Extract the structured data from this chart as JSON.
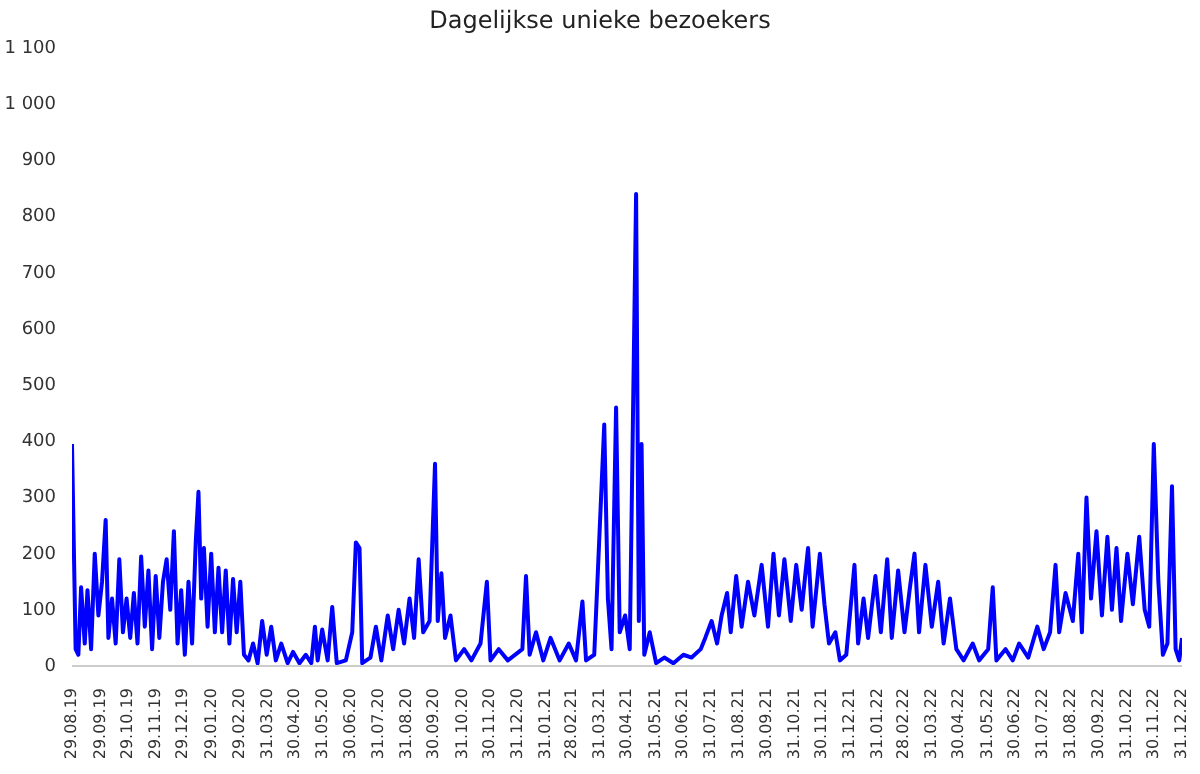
{
  "chart_data": {
    "type": "line",
    "title": "Dagelijkse unieke bezoekers",
    "x": [
      "2019-08-29",
      "2019-09-02",
      "2019-09-05",
      "2019-09-08",
      "2019-09-12",
      "2019-09-15",
      "2019-09-19",
      "2019-09-23",
      "2019-09-27",
      "2019-10-01",
      "2019-10-05",
      "2019-10-08",
      "2019-10-12",
      "2019-10-16",
      "2019-10-20",
      "2019-10-24",
      "2019-10-28",
      "2019-11-01",
      "2019-11-05",
      "2019-11-09",
      "2019-11-13",
      "2019-11-17",
      "2019-11-21",
      "2019-11-25",
      "2019-11-29",
      "2019-12-03",
      "2019-12-07",
      "2019-12-11",
      "2019-12-15",
      "2019-12-19",
      "2019-12-23",
      "2019-12-27",
      "2019-12-31",
      "2020-01-04",
      "2020-01-08",
      "2020-01-12",
      "2020-01-15",
      "2020-01-18",
      "2020-01-21",
      "2020-01-25",
      "2020-01-29",
      "2020-02-02",
      "2020-02-06",
      "2020-02-10",
      "2020-02-14",
      "2020-02-18",
      "2020-02-22",
      "2020-02-26",
      "2020-03-01",
      "2020-03-05",
      "2020-03-10",
      "2020-03-15",
      "2020-03-20",
      "2020-03-25",
      "2020-03-30",
      "2020-04-04",
      "2020-04-09",
      "2020-04-15",
      "2020-04-22",
      "2020-04-28",
      "2020-05-05",
      "2020-05-12",
      "2020-05-18",
      "2020-05-22",
      "2020-05-25",
      "2020-05-30",
      "2020-06-05",
      "2020-06-10",
      "2020-06-15",
      "2020-06-25",
      "2020-07-02",
      "2020-07-06",
      "2020-07-10",
      "2020-07-13",
      "2020-07-22",
      "2020-07-28",
      "2020-08-03",
      "2020-08-10",
      "2020-08-16",
      "2020-08-22",
      "2020-08-28",
      "2020-09-03",
      "2020-09-08",
      "2020-09-13",
      "2020-09-18",
      "2020-09-25",
      "2020-10-01",
      "2020-10-04",
      "2020-10-08",
      "2020-10-12",
      "2020-10-18",
      "2020-10-24",
      "2020-11-02",
      "2020-11-10",
      "2020-11-20",
      "2020-11-27",
      "2020-12-01",
      "2020-12-10",
      "2020-12-20",
      "2021-01-05",
      "2021-01-09",
      "2021-01-13",
      "2021-01-20",
      "2021-01-28",
      "2021-02-05",
      "2021-02-15",
      "2021-02-25",
      "2021-03-05",
      "2021-03-12",
      "2021-03-16",
      "2021-03-25",
      "2021-04-05",
      "2021-04-09",
      "2021-04-13",
      "2021-04-18",
      "2021-04-22",
      "2021-04-28",
      "2021-05-03",
      "2021-05-10",
      "2021-05-13",
      "2021-05-16",
      "2021-05-19",
      "2021-05-25",
      "2021-06-01",
      "2021-06-10",
      "2021-06-20",
      "2021-07-01",
      "2021-07-10",
      "2021-07-20",
      "2021-07-25",
      "2021-08-01",
      "2021-08-07",
      "2021-08-12",
      "2021-08-18",
      "2021-08-22",
      "2021-08-28",
      "2021-09-03",
      "2021-09-10",
      "2021-09-17",
      "2021-09-25",
      "2021-10-02",
      "2021-10-08",
      "2021-10-14",
      "2021-10-20",
      "2021-10-27",
      "2021-11-02",
      "2021-11-08",
      "2021-11-15",
      "2021-11-20",
      "2021-11-28",
      "2021-12-03",
      "2021-12-08",
      "2021-12-15",
      "2021-12-20",
      "2021-12-27",
      "2022-01-05",
      "2022-01-09",
      "2022-01-15",
      "2022-01-20",
      "2022-01-28",
      "2022-02-03",
      "2022-02-10",
      "2022-02-15",
      "2022-02-22",
      "2022-03-01",
      "2022-03-07",
      "2022-03-12",
      "2022-03-17",
      "2022-03-24",
      "2022-03-31",
      "2022-04-07",
      "2022-04-13",
      "2022-04-20",
      "2022-04-27",
      "2022-05-05",
      "2022-05-15",
      "2022-05-22",
      "2022-06-01",
      "2022-06-06",
      "2022-06-10",
      "2022-06-20",
      "2022-06-28",
      "2022-07-05",
      "2022-07-15",
      "2022-07-25",
      "2022-08-01",
      "2022-08-08",
      "2022-08-14",
      "2022-08-18",
      "2022-08-25",
      "2022-09-02",
      "2022-09-08",
      "2022-09-12",
      "2022-09-17",
      "2022-09-22",
      "2022-09-28",
      "2022-10-04",
      "2022-10-10",
      "2022-10-15",
      "2022-10-20",
      "2022-10-25",
      "2022-11-01",
      "2022-11-07",
      "2022-11-14",
      "2022-11-20",
      "2022-11-25",
      "2022-11-30",
      "2022-12-05",
      "2022-12-10",
      "2022-12-15",
      "2022-12-20",
      "2022-12-24",
      "2022-12-28",
      "2022-12-31"
    ],
    "series": [
      {
        "color": "#0000ff",
        "values": [
          395,
          30,
          20,
          140,
          40,
          135,
          30,
          200,
          90,
          150,
          260,
          50,
          120,
          40,
          190,
          60,
          120,
          50,
          130,
          40,
          195,
          70,
          170,
          30,
          160,
          50,
          150,
          190,
          100,
          240,
          40,
          135,
          20,
          150,
          40,
          220,
          310,
          120,
          210,
          70,
          200,
          60,
          175,
          60,
          170,
          40,
          155,
          60,
          150,
          20,
          10,
          40,
          5,
          80,
          20,
          70,
          10,
          40,
          5,
          25,
          5,
          20,
          5,
          70,
          10,
          65,
          10,
          105,
          5,
          10,
          60,
          220,
          210,
          5,
          15,
          70,
          10,
          90,
          30,
          100,
          40,
          120,
          50,
          190,
          60,
          80,
          360,
          80,
          165,
          50,
          90,
          10,
          30,
          10,
          40,
          150,
          10,
          30,
          10,
          30,
          160,
          20,
          60,
          10,
          50,
          10,
          40,
          10,
          115,
          10,
          20,
          430,
          120,
          30,
          460,
          60,
          90,
          30,
          840,
          80,
          395,
          20,
          60,
          5,
          15,
          5,
          20,
          15,
          30,
          50,
          80,
          40,
          90,
          130,
          60,
          160,
          70,
          150,
          90,
          180,
          70,
          200,
          90,
          190,
          80,
          180,
          100,
          210,
          70,
          200,
          110,
          40,
          60,
          10,
          20,
          180,
          40,
          120,
          50,
          160,
          60,
          190,
          50,
          170,
          60,
          140,
          200,
          60,
          180,
          70,
          150,
          40,
          120,
          30,
          10,
          40,
          10,
          30,
          140,
          10,
          30,
          10,
          40,
          15,
          70,
          30,
          60,
          180,
          60,
          130,
          80,
          200,
          60,
          300,
          120,
          240,
          90,
          230,
          100,
          210,
          80,
          200,
          110,
          230,
          100,
          70,
          395,
          150,
          20,
          40,
          320,
          30,
          10,
          50
        ]
      }
    ],
    "xlim": [
      "2019-08-29",
      "2022-12-31"
    ],
    "xticks": [
      {
        "value": "2019-08-29",
        "label": "29.08.19"
      },
      {
        "value": "2019-09-29",
        "label": "29.09.19"
      },
      {
        "value": "2019-10-29",
        "label": "29.10.19"
      },
      {
        "value": "2019-11-29",
        "label": "29.11.19"
      },
      {
        "value": "2019-12-29",
        "label": "29.12.19"
      },
      {
        "value": "2020-01-29",
        "label": "29.01.20"
      },
      {
        "value": "2020-02-29",
        "label": "29.02.20"
      },
      {
        "value": "2020-03-31",
        "label": "31.03.20"
      },
      {
        "value": "2020-04-30",
        "label": "30.04.20"
      },
      {
        "value": "2020-05-31",
        "label": "31.05.20"
      },
      {
        "value": "2020-06-30",
        "label": "30.06.20"
      },
      {
        "value": "2020-07-31",
        "label": "31.07.20"
      },
      {
        "value": "2020-08-31",
        "label": "31.08.20"
      },
      {
        "value": "2020-09-30",
        "label": "30.09.20"
      },
      {
        "value": "2020-10-31",
        "label": "31.10.20"
      },
      {
        "value": "2020-11-30",
        "label": "30.11.20"
      },
      {
        "value": "2020-12-31",
        "label": "31.12.20"
      },
      {
        "value": "2021-01-31",
        "label": "31.01.21"
      },
      {
        "value": "2021-02-28",
        "label": "28.02.21"
      },
      {
        "value": "2021-03-31",
        "label": "31.03.21"
      },
      {
        "value": "2021-04-30",
        "label": "30.04.21"
      },
      {
        "value": "2021-05-31",
        "label": "31.05.21"
      },
      {
        "value": "2021-06-30",
        "label": "30.06.21"
      },
      {
        "value": "2021-07-31",
        "label": "31.07.21"
      },
      {
        "value": "2021-08-31",
        "label": "31.08.21"
      },
      {
        "value": "2021-09-30",
        "label": "30.09.21"
      },
      {
        "value": "2021-10-31",
        "label": "31.10.21"
      },
      {
        "value": "2021-11-30",
        "label": "30.11.21"
      },
      {
        "value": "2021-12-31",
        "label": "31.12.21"
      },
      {
        "value": "2022-01-31",
        "label": "31.01.22"
      },
      {
        "value": "2022-02-28",
        "label": "28.02.22"
      },
      {
        "value": "2022-03-31",
        "label": "31.03.22"
      },
      {
        "value": "2022-04-30",
        "label": "30.04.22"
      },
      {
        "value": "2022-05-31",
        "label": "31.05.22"
      },
      {
        "value": "2022-06-30",
        "label": "30.06.22"
      },
      {
        "value": "2022-07-31",
        "label": "31.07.22"
      },
      {
        "value": "2022-08-31",
        "label": "31.08.22"
      },
      {
        "value": "2022-09-30",
        "label": "30.09.22"
      },
      {
        "value": "2022-10-31",
        "label": "31.10.22"
      },
      {
        "value": "2022-11-30",
        "label": "30.11.22"
      },
      {
        "value": "2022-12-31",
        "label": "31.12.22"
      }
    ],
    "ylim": [
      0,
      1100
    ],
    "yticks": [
      0,
      100,
      200,
      300,
      400,
      500,
      600,
      700,
      800,
      900,
      {
        "value": 1000,
        "label": "1 000"
      },
      {
        "value": 1100,
        "label": "1 100"
      }
    ]
  }
}
